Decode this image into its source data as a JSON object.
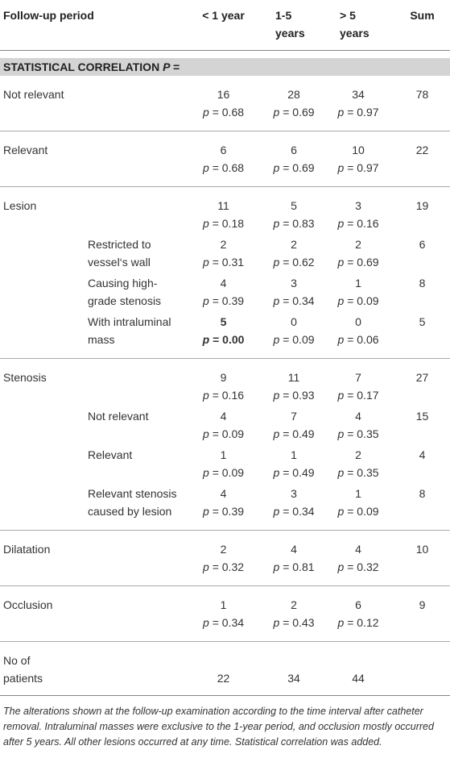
{
  "table": {
    "header": [
      "Follow-up period",
      "< 1 year",
      "1-5 years",
      "> 5 years",
      "Sum"
    ],
    "section": {
      "text": "STATISTICAL CORRELATION",
      "symbol": "P ="
    },
    "p_symbol": "p",
    "p_equals": "=",
    "groups": [
      {
        "label": "Not relevant",
        "rows": [
          {
            "cells": [
              {
                "count": 16,
                "p": "0.68"
              },
              {
                "count": 28,
                "p": "0.69"
              },
              {
                "count": 34,
                "p": "0.97"
              }
            ],
            "sum": 78
          }
        ]
      },
      {
        "label": "Relevant",
        "rows": [
          {
            "cells": [
              {
                "count": 6,
                "p": "0.68"
              },
              {
                "count": 6,
                "p": "0.69"
              },
              {
                "count": 10,
                "p": "0.97"
              }
            ],
            "sum": 22
          }
        ]
      },
      {
        "label": "Lesion",
        "rows": [
          {
            "cells": [
              {
                "count": 11,
                "p": "0.18"
              },
              {
                "count": 5,
                "p": "0.83"
              },
              {
                "count": 3,
                "p": "0.16"
              }
            ],
            "sum": 19
          },
          {
            "sublabel": "Restricted to vessel‘s wall",
            "cells": [
              {
                "count": 2,
                "p": "0.31"
              },
              {
                "count": 2,
                "p": "0.62"
              },
              {
                "count": 2,
                "p": "0.69"
              }
            ],
            "sum": 6
          },
          {
            "sublabel": "Causing high-grade stenosis",
            "cells": [
              {
                "count": 4,
                "p": "0.39"
              },
              {
                "count": 3,
                "p": "0.34"
              },
              {
                "count": 1,
                "p": "0.09"
              }
            ],
            "sum": 8
          },
          {
            "sublabel": "With intraluminal mass",
            "cells": [
              {
                "count": 5,
                "p": "0.00",
                "bold": true
              },
              {
                "count": 0,
                "p": "0.09"
              },
              {
                "count": 0,
                "p": "0.06"
              }
            ],
            "sum": 5
          }
        ]
      },
      {
        "label": "Stenosis",
        "rows": [
          {
            "cells": [
              {
                "count": 9,
                "p": "0.16"
              },
              {
                "count": 11,
                "p": "0.93"
              },
              {
                "count": 7,
                "p": "0.17"
              }
            ],
            "sum": 27
          },
          {
            "sublabel": "Not relevant",
            "cells": [
              {
                "count": 4,
                "p": "0.09"
              },
              {
                "count": 7,
                "p": "0.49"
              },
              {
                "count": 4,
                "p": "0.35"
              }
            ],
            "sum": 15
          },
          {
            "sublabel": "Relevant",
            "cells": [
              {
                "count": 1,
                "p": "0.09"
              },
              {
                "count": 1,
                "p": "0.49"
              },
              {
                "count": 2,
                "p": "0.35"
              }
            ],
            "sum": 4
          },
          {
            "sublabel": "Relevant stenosis caused by lesion",
            "cells": [
              {
                "count": 4,
                "p": "0.39"
              },
              {
                "count": 3,
                "p": "0.34"
              },
              {
                "count": 1,
                "p": "0.09"
              }
            ],
            "sum": 8
          }
        ]
      },
      {
        "label": "Dilatation",
        "rows": [
          {
            "cells": [
              {
                "count": 2,
                "p": "0.32"
              },
              {
                "count": 4,
                "p": "0.81"
              },
              {
                "count": 4,
                "p": "0.32"
              }
            ],
            "sum": 10
          }
        ]
      },
      {
        "label": "Occlusion",
        "rows": [
          {
            "cells": [
              {
                "count": 1,
                "p": "0.34"
              },
              {
                "count": 2,
                "p": "0.43"
              },
              {
                "count": 6,
                "p": "0.12"
              }
            ],
            "sum": 9
          }
        ]
      }
    ],
    "patients": {
      "label": "No of patients",
      "counts": [
        22,
        34,
        44
      ]
    },
    "caption": "The alterations shown at the follow-up examination according to the time interval after catheter removal. Intraluminal masses were exclusive to the 1-year period, and occlusion mostly occurred after 5 years. All other lesions occurred at any time. Statistical correlation was added."
  }
}
